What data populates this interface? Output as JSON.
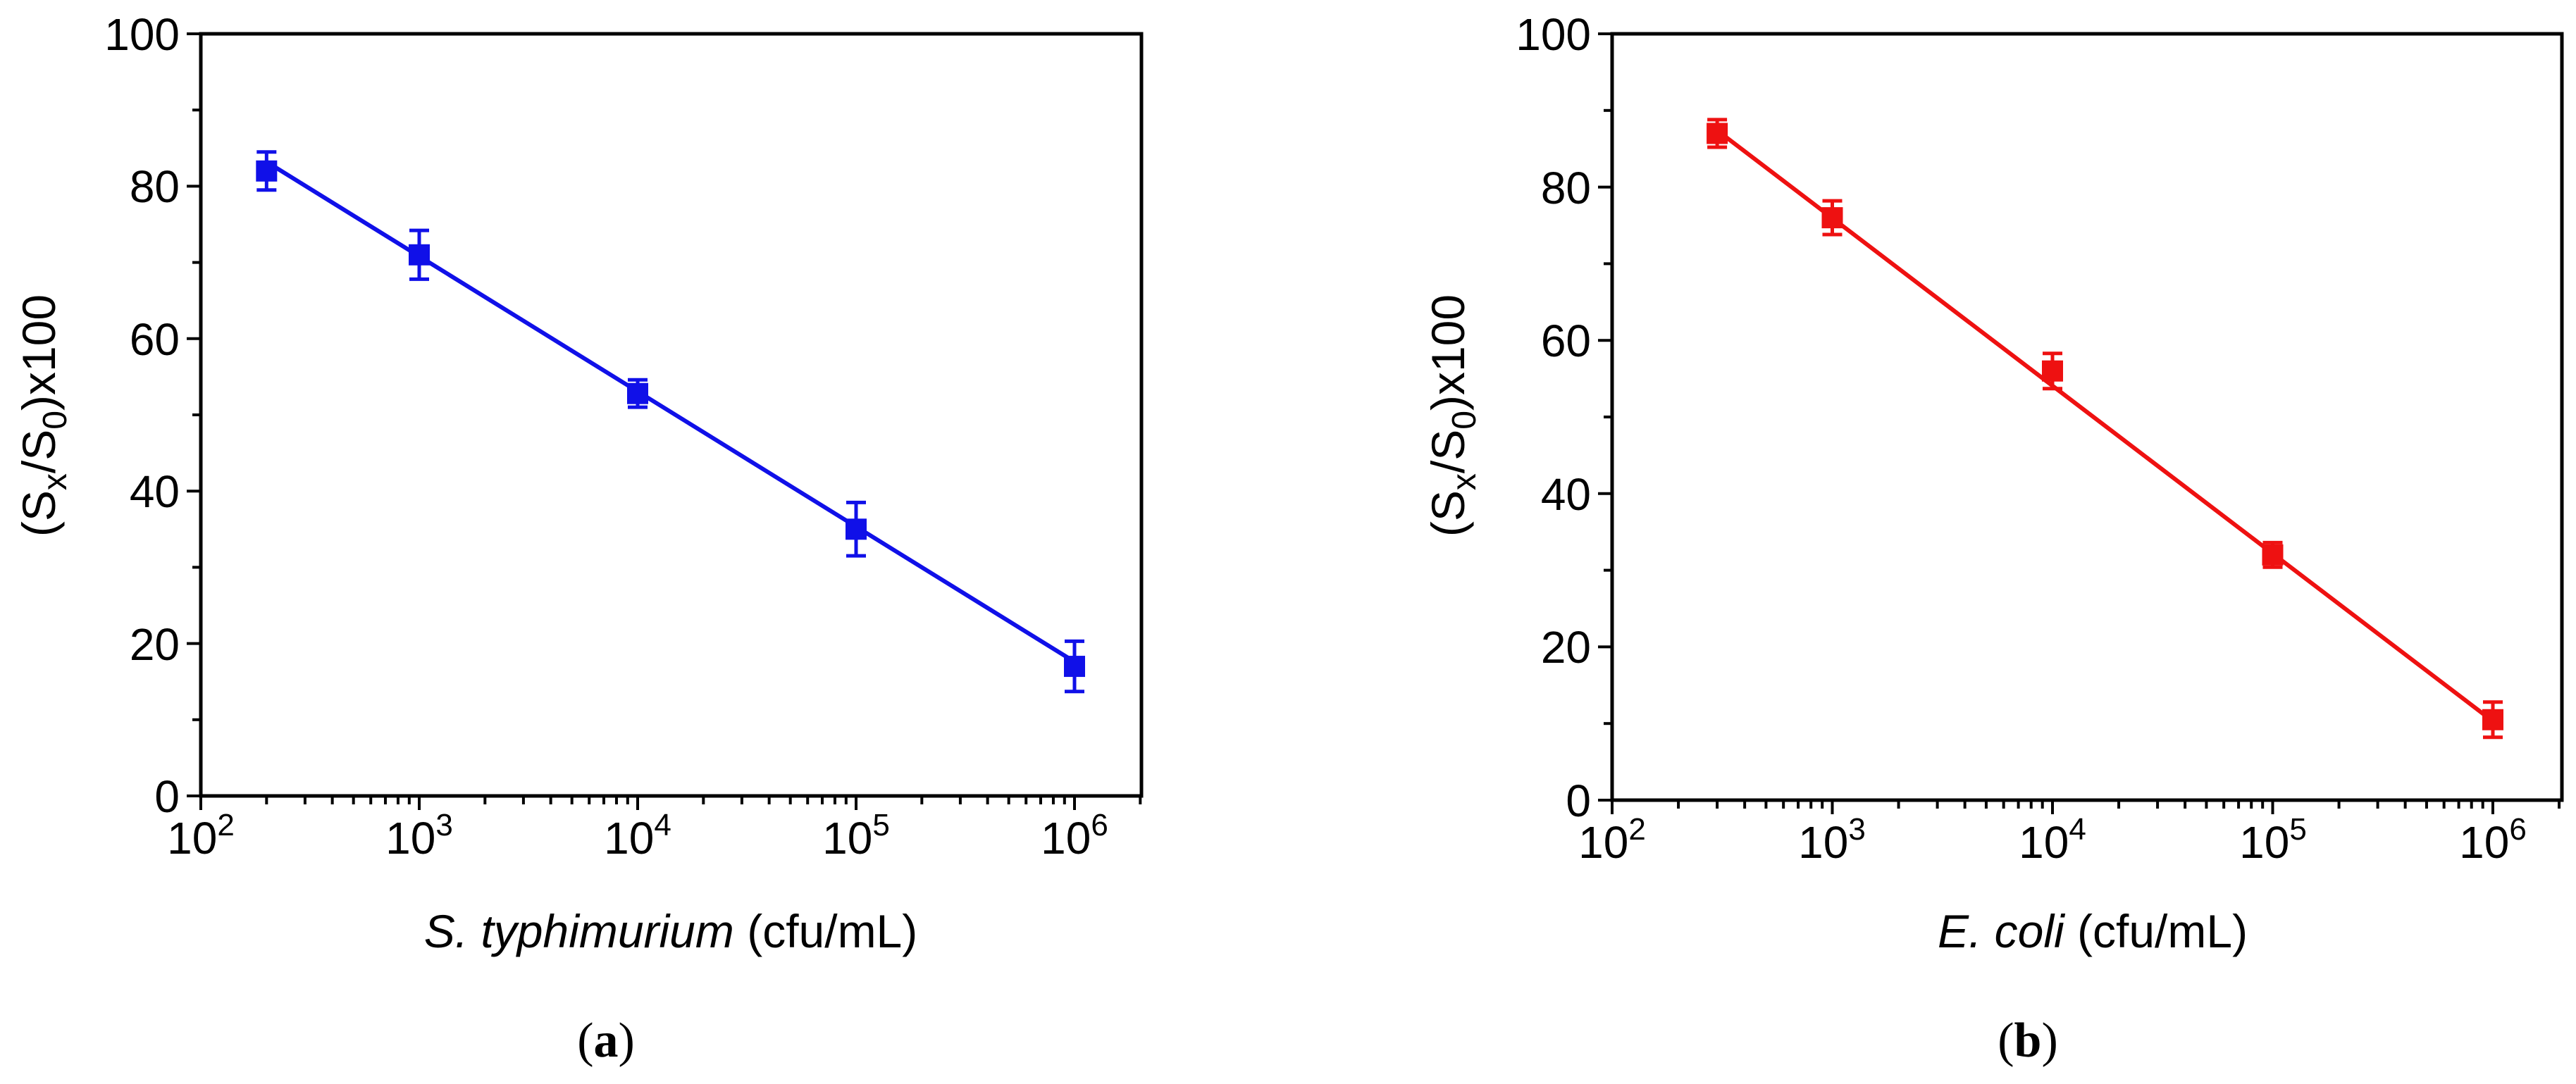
{
  "chart_data": [
    {
      "id": "a",
      "type": "scatter",
      "fit_line": true,
      "marker": "square",
      "color": "#1010e8",
      "x_scale": "log",
      "x": [
        200,
        1000,
        10000,
        100000,
        1000000
      ],
      "y": [
        82,
        71,
        52.8,
        35,
        17
      ],
      "y_err": [
        2.5,
        3.2,
        1.8,
        3.5,
        3.3
      ],
      "fit": {
        "x": [
          200,
          1000000
        ],
        "y": [
          83.2,
          17.6
        ]
      },
      "xlim": [
        100,
        3000000
      ],
      "ylim": [
        0,
        100
      ],
      "x_ticks": [
        {
          "base": "10",
          "exp": "2"
        },
        {
          "base": "10",
          "exp": "3"
        },
        {
          "base": "10",
          "exp": "4"
        },
        {
          "base": "10",
          "exp": "5"
        },
        {
          "base": "10",
          "exp": "6"
        }
      ],
      "y_ticks": [
        "0",
        "20",
        "40",
        "60",
        "80",
        "100"
      ],
      "xlabel": {
        "italic": "S. typhimurium",
        "rest": " (cfu/mL)"
      },
      "ylabel": {
        "open": "(S",
        "sub1": "x",
        "slash": "/S",
        "sub2": "0",
        "close": ")x100"
      },
      "caption": {
        "open": "(",
        "letter": "a",
        "close": ")"
      }
    },
    {
      "id": "b",
      "type": "scatter",
      "fit_line": true,
      "marker": "square",
      "color": "#ee1111",
      "x_scale": "log",
      "x": [
        300,
        1000,
        10000,
        100000,
        1000000
      ],
      "y": [
        87,
        76,
        56,
        32,
        10.5
      ],
      "y_err": [
        1.8,
        2.2,
        2.3,
        1.6,
        2.3
      ],
      "fit": {
        "x": [
          300,
          1000000
        ],
        "y": [
          87.4,
          10.3
        ]
      },
      "xlim": [
        100,
        3000000
      ],
      "ylim": [
        0,
        100
      ],
      "x_ticks": [
        {
          "base": "10",
          "exp": "2"
        },
        {
          "base": "10",
          "exp": "3"
        },
        {
          "base": "10",
          "exp": "4"
        },
        {
          "base": "10",
          "exp": "5"
        },
        {
          "base": "10",
          "exp": "6"
        }
      ],
      "y_ticks": [
        "0",
        "20",
        "40",
        "60",
        "80",
        "100"
      ],
      "xlabel": {
        "italic": "E. coli",
        "rest": " (cfu/mL)"
      },
      "ylabel": {
        "open": "(S",
        "sub1": "x",
        "slash": "/S",
        "sub2": "0",
        "close": ")x100"
      },
      "caption": {
        "open": "(",
        "letter": "b",
        "close": ")"
      }
    }
  ]
}
